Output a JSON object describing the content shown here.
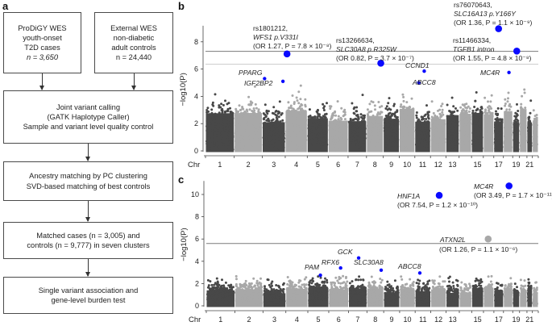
{
  "panels": {
    "a": "a",
    "b": "b",
    "c": "c"
  },
  "flowchart": {
    "cases": [
      "ProDiGY WES",
      "youth-onset",
      "T2D cases",
      "n = 3,650"
    ],
    "controls": [
      "External WES",
      "non-diabetic",
      "adult controls",
      "n = 24,440"
    ],
    "step1": [
      "Joint variant calling",
      "(GATK Haplotype Caller)",
      "Sample and variant level quality control"
    ],
    "step2": [
      "Ancestry matching by PC clustering",
      "SVD-based matching of best controls"
    ],
    "step3": [
      "Matched cases (n = 3,005) and",
      "controls (n = 9,777) in seven clusters"
    ],
    "step4": [
      "Single variant association and",
      "gene-level burden test"
    ]
  },
  "colors": {
    "dark": "#484848",
    "light": "#a8a8a8",
    "highlight": "#0a0aff",
    "threshold": "#7a7a7a",
    "threshold_light": "#cccccc"
  },
  "chart_data": [
    {
      "type": "scatter",
      "subtype": "manhattan",
      "panel": "b",
      "ylabel": "−log10(P)",
      "xlabel": "Chr",
      "ylim": [
        0,
        9
      ],
      "yticks": [
        "0",
        "2",
        "4",
        "6",
        "8"
      ],
      "xtick_labels": [
        "1",
        "2",
        "3",
        "4",
        "5",
        "6",
        "7",
        "8",
        "9",
        "10",
        "11",
        "12",
        "13",
        "15",
        "17",
        "19",
        "21"
      ],
      "thresholds": [
        7.3,
        6.35
      ],
      "annotated": [
        {
          "chr": 4,
          "y": 7.11,
          "size": "large",
          "lines": [
            "rs1801212,",
            "WFS1 p.V331I",
            "(OR 1.27, P = 7.8 × 10⁻⁸)"
          ]
        },
        {
          "chr": 8,
          "y": 6.43,
          "size": "large",
          "lines": [
            "rs13266634,",
            "SLC30A8 p.R325W",
            "(OR 0.82, P = 3.7 × 10⁻⁷)"
          ]
        },
        {
          "chr": 17,
          "y": 8.96,
          "size": "large",
          "lines": [
            "rs76070643,",
            "SLC16A13 p.Y166Y",
            "(OR 1.36, P = 1.1 × 10⁻⁹)"
          ]
        },
        {
          "chr": 19,
          "y": 7.32,
          "size": "large",
          "lines": [
            "rs11466334,",
            "TGFB1 intron",
            "(OR 1.55, P = 4.8 × 10⁻⁸)"
          ]
        },
        {
          "chr": 3,
          "y": 5.3,
          "size": "small",
          "lines": [
            "PPARG"
          ]
        },
        {
          "chr": 3,
          "y": 5.1,
          "size": "small",
          "lines": [
            "IGF2BP2"
          ]
        },
        {
          "chr": 11,
          "y": 5.85,
          "size": "small",
          "lines": [
            "CCND1"
          ]
        },
        {
          "chr": 11,
          "y": 5.0,
          "size": "small",
          "lines": [
            "ABCC8"
          ]
        },
        {
          "chr": 18,
          "y": 5.75,
          "size": "small",
          "lines": [
            "MC4R"
          ]
        }
      ]
    },
    {
      "type": "scatter",
      "subtype": "manhattan",
      "panel": "c",
      "ylabel": "−log10(P)",
      "xlabel": "Chr",
      "ylim": [
        0,
        11
      ],
      "yticks": [
        "0",
        "2",
        "4",
        "6",
        "8",
        "10"
      ],
      "xtick_labels": [
        "1",
        "2",
        "3",
        "4",
        "5",
        "6",
        "7",
        "8",
        "9",
        "10",
        "11",
        "12",
        "13",
        "15",
        "17",
        "19",
        "21"
      ],
      "thresholds": [
        5.6
      ],
      "annotated": [
        {
          "chr": 12,
          "y": 9.92,
          "size": "large",
          "lines": [
            "HNF1A",
            "(OR 7.54, P = 1.2 × 10⁻¹⁰)"
          ]
        },
        {
          "chr": 18,
          "y": 10.77,
          "size": "large",
          "lines": [
            "MC4R",
            "(OR 3.49, P = 1.7 × 10⁻¹¹)"
          ]
        },
        {
          "chr": 16,
          "y": 6.0,
          "size": "large",
          "gray": true,
          "lines": [
            "ATXN2L",
            "(OR 1.26, P = 1.1 × 10⁻⁶)"
          ]
        },
        {
          "chr": 7,
          "y": 4.3,
          "size": "small",
          "lines": [
            "GCK"
          ]
        },
        {
          "chr": 6,
          "y": 3.4,
          "size": "small",
          "lines": [
            "RFX6"
          ]
        },
        {
          "chr": 5,
          "y": 2.75,
          "size": "small",
          "lines": [
            "PAM"
          ]
        },
        {
          "chr": 8,
          "y": 3.2,
          "size": "small",
          "lines": [
            "SLC30A8"
          ]
        },
        {
          "chr": 11,
          "y": 2.95,
          "size": "small",
          "lines": [
            "ABCC8"
          ]
        }
      ]
    }
  ]
}
